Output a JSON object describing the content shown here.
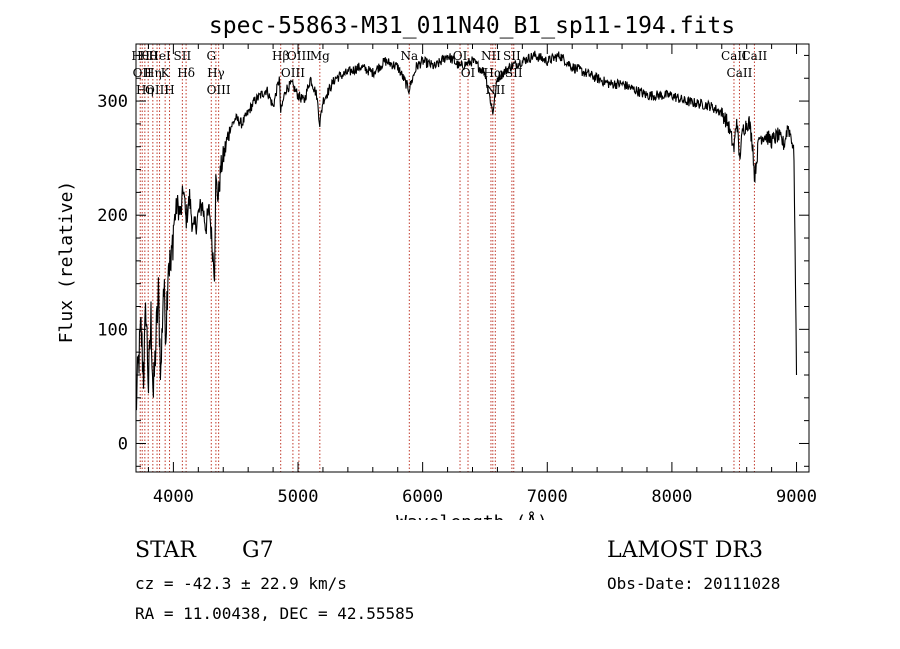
{
  "chart_data": {
    "type": "line",
    "title": "spec-55863-M31_011N40_B1_sp11-194.fits",
    "xlabel": "Wavelength (Å)",
    "ylabel": "Flux (relative)",
    "xlim": [
      3700,
      9100
    ],
    "ylim": [
      -25,
      350
    ],
    "xticks": [
      4000,
      5000,
      6000,
      7000,
      8000,
      9000
    ],
    "yticks": [
      0,
      100,
      200,
      300
    ],
    "series": [
      {
        "name": "flux",
        "x": [
          3700,
          3720,
          3740,
          3760,
          3780,
          3800,
          3820,
          3840,
          3860,
          3880,
          3900,
          3920,
          3940,
          3960,
          3980,
          4000,
          4030,
          4060,
          4080,
          4100,
          4130,
          4160,
          4200,
          4230,
          4260,
          4290,
          4310,
          4330,
          4340,
          4360,
          4380,
          4400,
          4450,
          4500,
          4550,
          4600,
          4650,
          4700,
          4750,
          4800,
          4850,
          4861,
          4900,
          4950,
          5000,
          5050,
          5100,
          5150,
          5175,
          5200,
          5300,
          5400,
          5500,
          5600,
          5700,
          5800,
          5890,
          5950,
          6000,
          6100,
          6200,
          6300,
          6400,
          6500,
          6563,
          6600,
          6700,
          6800,
          6900,
          7000,
          7100,
          7200,
          7300,
          7400,
          7500,
          7600,
          7700,
          7800,
          7900,
          8000,
          8100,
          8200,
          8300,
          8400,
          8450,
          8498,
          8520,
          8542,
          8570,
          8600,
          8620,
          8650,
          8662,
          8700,
          8750,
          8800,
          8850,
          8900,
          8930,
          8960,
          8980,
          9000
        ],
        "y": [
          30,
          70,
          100,
          60,
          120,
          50,
          110,
          40,
          90,
          130,
          60,
          140,
          100,
          165,
          150,
          190,
          210,
          200,
          225,
          195,
          215,
          185,
          200,
          210,
          190,
          205,
          175,
          150,
          230,
          215,
          240,
          250,
          275,
          285,
          280,
          290,
          300,
          305,
          310,
          295,
          320,
          290,
          310,
          315,
          305,
          300,
          320,
          305,
          280,
          300,
          320,
          325,
          330,
          325,
          335,
          330,
          310,
          330,
          335,
          330,
          340,
          330,
          335,
          325,
          290,
          320,
          330,
          335,
          340,
          335,
          340,
          330,
          325,
          320,
          315,
          315,
          310,
          305,
          305,
          305,
          300,
          298,
          296,
          290,
          280,
          258,
          285,
          250,
          275,
          280,
          282,
          260,
          232,
          268,
          270,
          265,
          270,
          262,
          278,
          268,
          252,
          60
        ]
      }
    ],
    "lines": [
      {
        "x": 3734,
        "label": "Hθ"
      },
      {
        "x": 3750,
        "label": "OII"
      },
      {
        "x": 3771,
        "label": "Hη"
      },
      {
        "x": 3798,
        "label": "Hθ"
      },
      {
        "x": 3835,
        "label": "Hη"
      },
      {
        "x": 3869,
        "label": "OIII"
      },
      {
        "x": 3889,
        "label": "HeI"
      },
      {
        "x": 3934,
        "label": "K"
      },
      {
        "x": 3969,
        "label": "H"
      },
      {
        "x": 4072,
        "label": "SII"
      },
      {
        "x": 4102,
        "label": "Hδ"
      },
      {
        "x": 4304,
        "label": "G"
      },
      {
        "x": 4341,
        "label": "Hγ"
      },
      {
        "x": 4363,
        "label": "OIII"
      },
      {
        "x": 4861,
        "label": "Hβ"
      },
      {
        "x": 4959,
        "label": "OIII"
      },
      {
        "x": 5007,
        "label": "OIII"
      },
      {
        "x": 5175,
        "label": "Mg"
      },
      {
        "x": 5893,
        "label": "Na"
      },
      {
        "x": 6300,
        "label": "OI"
      },
      {
        "x": 6364,
        "label": "OI"
      },
      {
        "x": 6548,
        "label": "NII"
      },
      {
        "x": 6563,
        "label": "Hα"
      },
      {
        "x": 6583,
        "label": "NII"
      },
      {
        "x": 6716,
        "label": "SII"
      },
      {
        "x": 6731,
        "label": "SII"
      },
      {
        "x": 8498,
        "label": "CaII"
      },
      {
        "x": 8542,
        "label": "CaII"
      },
      {
        "x": 8662,
        "label": "CaII"
      }
    ]
  },
  "info": {
    "class": "STAR",
    "subclass": "G7",
    "survey": "LAMOST DR3",
    "cz": "cz = -42.3 ± 22.9 km/s",
    "obs_date": "Obs-Date: 20111028",
    "coords": "RA =  11.00438, DEC =  42.55585"
  }
}
